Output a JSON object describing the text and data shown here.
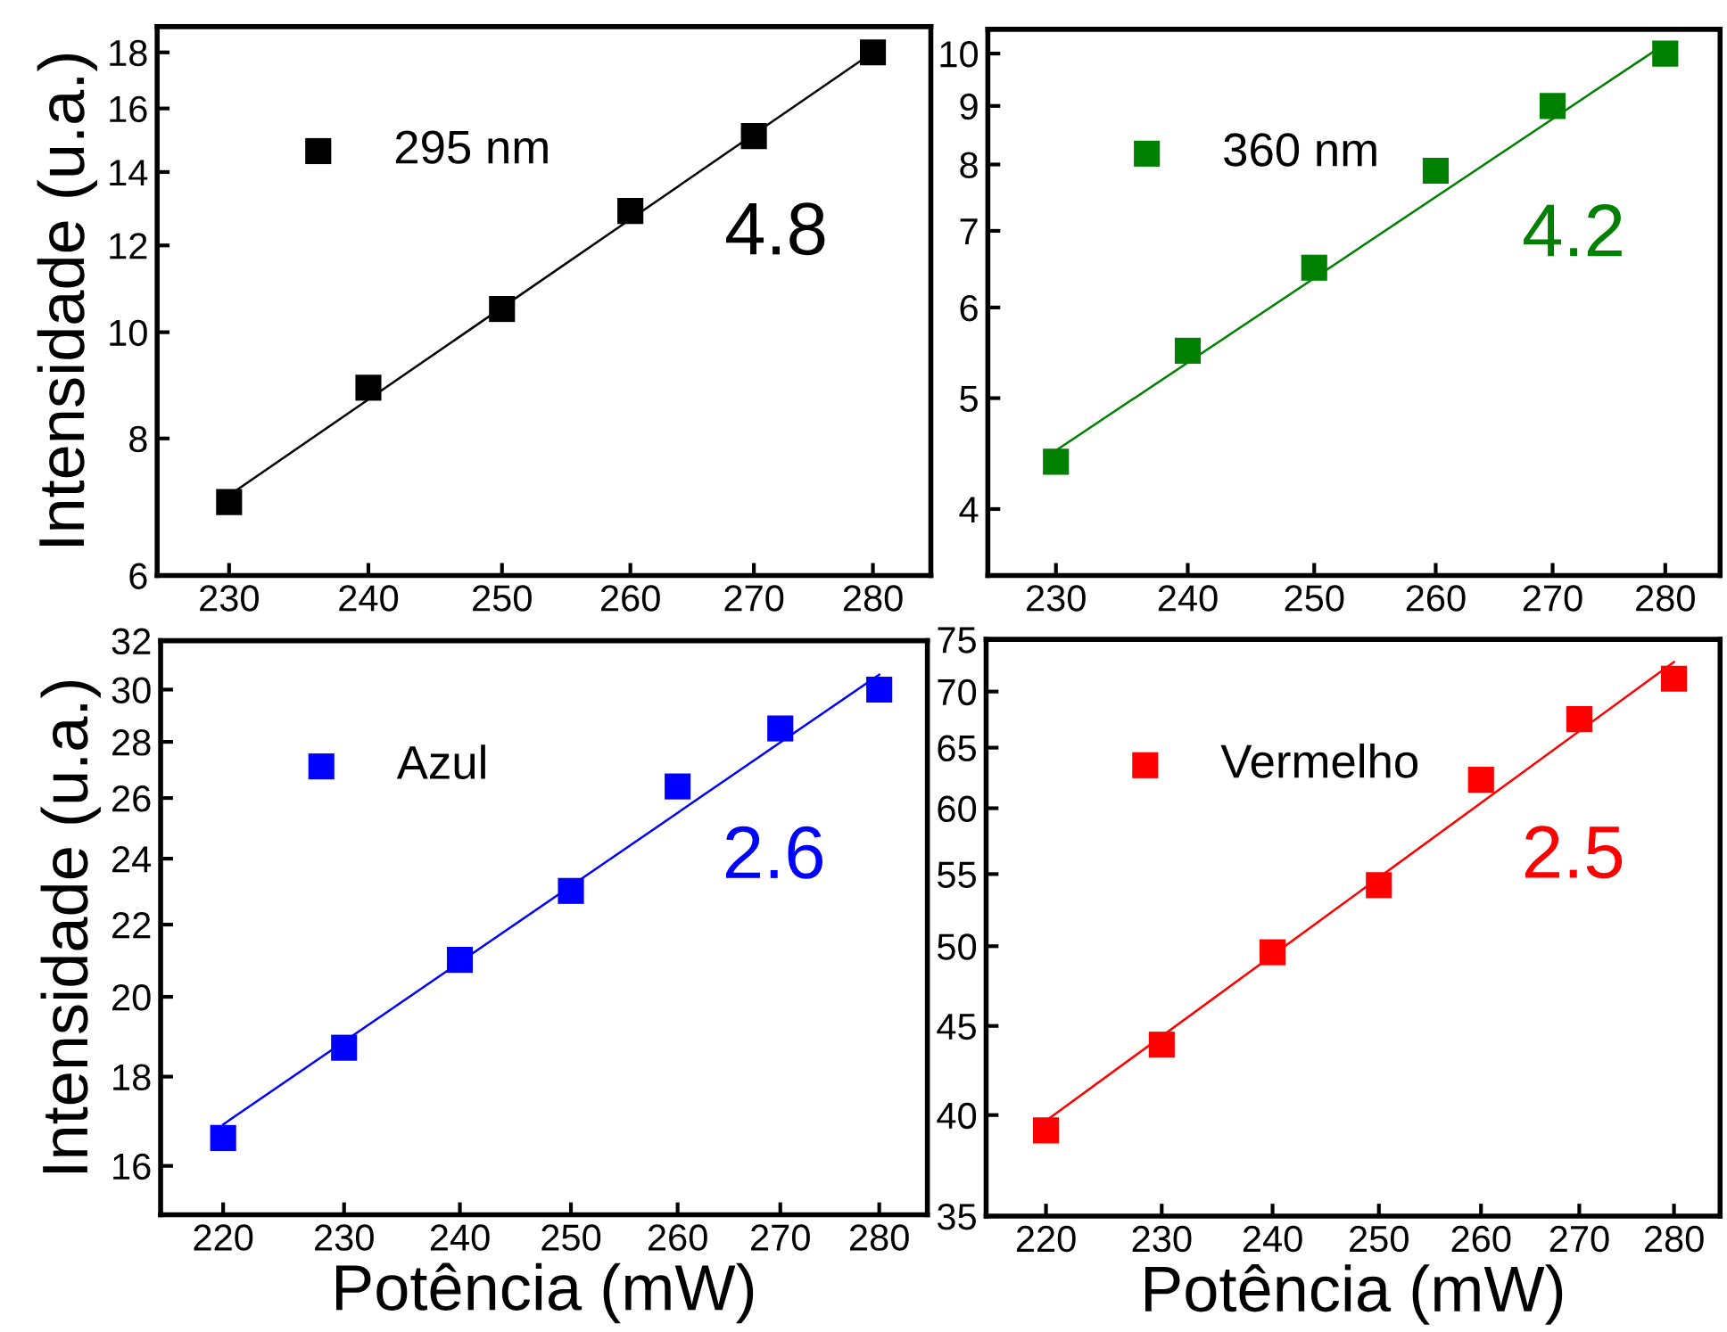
{
  "chart_data": [
    {
      "type": "scatter",
      "ylabel": "Intensidade (u.a.)",
      "log": "xy",
      "legend": "top left",
      "annotations": [
        "4.8"
      ],
      "xlim": [
        225,
        285
      ],
      "xticks": [
        230,
        240,
        250,
        260,
        270,
        280
      ],
      "ylim": [
        6,
        19
      ],
      "yticks": [
        6,
        8,
        10,
        12,
        14,
        16,
        18
      ],
      "x": [
        230,
        240,
        250,
        260,
        270,
        280
      ],
      "series": [
        {
          "name": "295 nm",
          "color": "#000000",
          "marker": "square",
          "values": [
            7.0,
            8.9,
            10.5,
            12.9,
            15.1,
            18.0
          ]
        },
        {
          "type": "line",
          "color": "#000000",
          "x": [
            230,
            280
          ],
          "values": [
            7.1,
            18.0
          ]
        }
      ]
    },
    {
      "type": "scatter",
      "log": "xy",
      "legend": "top left",
      "annotations": [
        "4.2"
      ],
      "xlim": [
        225,
        285
      ],
      "xticks": [
        230,
        240,
        250,
        260,
        270,
        280
      ],
      "ylim": [
        3.5,
        10.5
      ],
      "yticks": [
        4,
        5,
        6,
        7,
        8,
        9,
        10
      ],
      "x": [
        230,
        240,
        250,
        260,
        270,
        280
      ],
      "series": [
        {
          "name": "360 nm",
          "color": "#008000",
          "marker": "square",
          "values": [
            4.4,
            5.5,
            6.5,
            7.9,
            9.0,
            10.0
          ]
        },
        {
          "type": "line",
          "color": "#008000",
          "x": [
            230,
            280
          ],
          "values": [
            4.5,
            10.2
          ]
        }
      ]
    },
    {
      "type": "scatter",
      "ylabel": "Intensidade (u.a.)",
      "xlabel": "Potência (mW)",
      "log": "xy",
      "legend": "top left",
      "annotations": [
        "2.6"
      ],
      "xlim": [
        215,
        285
      ],
      "xticks": [
        220,
        230,
        240,
        250,
        260,
        270,
        280
      ],
      "ylim": [
        15,
        32
      ],
      "yticks": [
        16,
        18,
        20,
        22,
        24,
        26,
        28,
        30,
        32
      ],
      "x": [
        220,
        230,
        240,
        250,
        260,
        270,
        280
      ],
      "series": [
        {
          "name": "Azul",
          "color": "#0000ff",
          "marker": "square",
          "values": [
            16.6,
            18.7,
            21.0,
            23.0,
            26.4,
            28.5,
            30.0
          ]
        },
        {
          "type": "line",
          "color": "#0000ff",
          "x": [
            220,
            280
          ],
          "values": [
            16.9,
            30.6
          ]
        }
      ]
    },
    {
      "type": "scatter",
      "xlabel": "Potência (mW)",
      "log": "xy",
      "legend": "top left",
      "annotations": [
        "2.5"
      ],
      "xlim": [
        215,
        285
      ],
      "xticks": [
        220,
        230,
        240,
        250,
        260,
        270,
        280
      ],
      "ylim": [
        35,
        75
      ],
      "yticks": [
        35,
        40,
        45,
        50,
        55,
        60,
        65,
        70,
        75
      ],
      "x": [
        220,
        230,
        240,
        250,
        260,
        270,
        280
      ],
      "series": [
        {
          "name": "Vermelho",
          "color": "#ff0000",
          "marker": "square",
          "values": [
            39.2,
            43.9,
            49.6,
            54.2,
            62.3,
            67.5,
            71.2
          ]
        },
        {
          "type": "line",
          "color": "#ff0000",
          "x": [
            220,
            280
          ],
          "values": [
            39.7,
            72.8
          ]
        }
      ]
    }
  ]
}
